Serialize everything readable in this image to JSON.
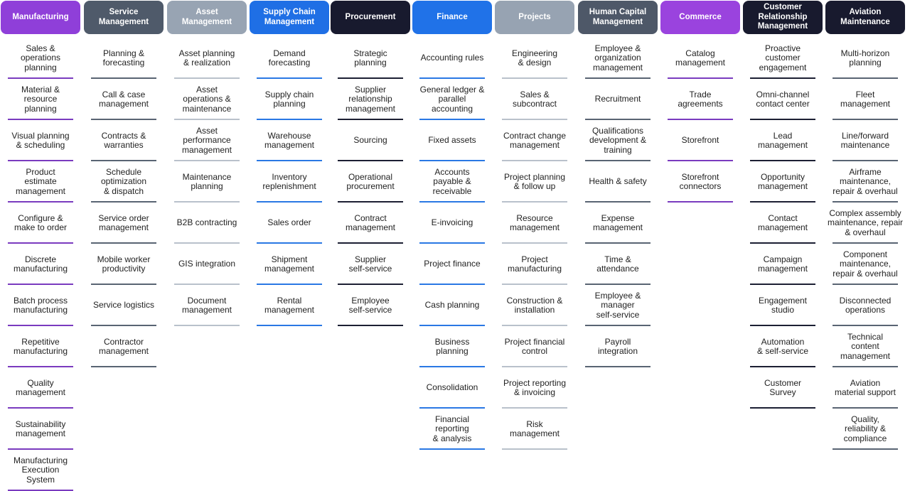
{
  "columns": [
    {
      "id": "manufacturing",
      "title": "Manufacturing",
      "color": "#8f3fd9",
      "rule": "#7a3bbf",
      "items": [
        "Sales &\noperations\nplanning",
        "Material &\nresource\nplanning",
        "Visual planning\n& scheduling",
        "Product\nestimate\nmanagement",
        "Configure &\nmake to order",
        "Discrete\nmanufacturing",
        "Batch process\nmanufacturing",
        "Repetitive\nmanufacturing",
        "Quality\nmanagement",
        "Sustainability\nmanagement",
        "Manufacturing\nExecution\nSystem"
      ]
    },
    {
      "id": "service-management",
      "title": "Service\nManagement",
      "color": "#4f5a6a",
      "rule": "#596473",
      "items": [
        "Planning &\nforecasting",
        "Call & case\nmanagement",
        "Contracts &\nwarranties",
        "Schedule\noptimization\n& dispatch",
        "Service order\nmanagement",
        "Mobile worker\nproductivity",
        "Service logistics",
        "Contractor\nmanagement"
      ]
    },
    {
      "id": "asset-management",
      "title": "Asset\nManagement",
      "color": "#98a4b3",
      "rule": "#b9c1cb",
      "items": [
        "Asset planning\n& realization",
        "Asset\noperations &\nmaintenance",
        "Asset\nperformance\nmanagement",
        "Maintenance\nplanning",
        "B2B contracting",
        "GIS integration",
        "Document\nmanagement"
      ]
    },
    {
      "id": "supply-chain-management",
      "title": "Supply Chain\nManagement",
      "color": "#1f6fe5",
      "rule": "#2a78e4",
      "items": [
        "Demand\nforecasting",
        "Supply chain\nplanning",
        "Warehouse\nmanagement",
        "Inventory\nreplenishment",
        "Sales order",
        "Shipment\nmanagement",
        "Rental\nmanagement"
      ]
    },
    {
      "id": "procurement",
      "title": "Procurement",
      "color": "#181a2e",
      "rule": "#1c1f33",
      "items": [
        "Strategic\nplanning",
        "Supplier\nrelationship\nmanagement",
        "Sourcing",
        "Operational\nprocurement",
        "Contract\nmanagement",
        "Supplier\nself-service",
        "Employee\nself-service"
      ]
    },
    {
      "id": "finance",
      "title": "Finance",
      "color": "#2072e8",
      "rule": "#2a78e4",
      "items": [
        "Accounting rules",
        "General ledger &\nparallel\naccounting",
        "Fixed assets",
        "Accounts\npayable &\nreceivable",
        "E-invoicing",
        "Project finance",
        "Cash planning",
        "Business\nplanning",
        "Consolidation",
        "Financial\nreporting\n& analysis"
      ]
    },
    {
      "id": "projects",
      "title": "Projects",
      "color": "#97a3b2",
      "rule": "#b9c1cb",
      "items": [
        "Engineering\n& design",
        "Sales &\nsubcontract",
        "Contract change\nmanagement",
        "Project planning\n& follow up",
        "Resource\nmanagement",
        "Project\nmanufacturing",
        "Construction &\ninstallation",
        "Project financial\ncontrol",
        "Project reporting\n& invoicing",
        "Risk\nmanagement"
      ]
    },
    {
      "id": "human-capital-management",
      "title": "Human Capital\nManagement",
      "color": "#4e5868",
      "rule": "#596473",
      "items": [
        "Employee &\norganization\nmanagement",
        "Recruitment",
        "Qualifications\ndevelopment &\ntraining",
        "Health & safety",
        "Expense\nmanagement",
        "Time &\nattendance",
        "Employee &\nmanager\nself-service",
        "Payroll\nintegration"
      ]
    },
    {
      "id": "commerce",
      "title": "Commerce",
      "color": "#9a43de",
      "rule": "#7a3bbf",
      "items": [
        "Catalog\nmanagement",
        "Trade\nagreements",
        "Storefront",
        "Storefront\nconnectors"
      ]
    },
    {
      "id": "customer-relationship-management",
      "title": "Customer\nRelationship\nManagement",
      "color": "#181a2e",
      "rule": "#1c1f33",
      "items": [
        "Proactive\ncustomer\nengagement",
        "Omni-channel\ncontact center",
        "Lead\nmanagement",
        "Opportunity\nmanagement",
        "Contact\nmanagement",
        "Campaign\nmanagement",
        "Engagement\nstudio",
        "Automation\n& self-service",
        "Customer\nSurvey"
      ]
    },
    {
      "id": "aviation-maintenance",
      "title": "Aviation\nMaintenance",
      "color": "#181a2e",
      "rule": "#596473",
      "items": [
        "Multi-horizon\nplanning",
        "Fleet\nmanagement",
        "Line/forward\nmaintenance",
        "Airframe\nmaintenance,\nrepair & overhaul",
        "Complex assembly\nmaintenance, repair\n& overhaul",
        "Component\nmaintenance,\nrepair & overhaul",
        "Disconnected\noperations",
        "Technical\ncontent\nmanagement",
        "Aviation\nmaterial support",
        "Quality,\nreliability &\ncompliance"
      ]
    }
  ]
}
